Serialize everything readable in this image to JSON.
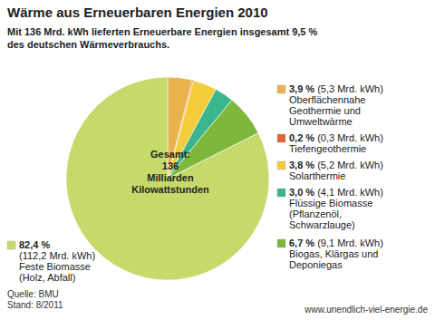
{
  "chart_data": {
    "type": "pie",
    "title": "Wärme aus Erneuerbaren Energien 2010",
    "subtitle": [
      "Mit 136 Mrd. kWh lieferten Erneuerbare Energien insgesamt 9,5 %",
      "des deutschen Wärmeverbrauchs."
    ],
    "center_label": [
      "Gesamt:",
      "136",
      "Milliarden",
      "Kilowattstunden"
    ],
    "categories": [
      "Oberflächennahe\nGeothermie und\nUmweltwärme",
      "Tiefengeothermie",
      "Solarthermie",
      "Flüssige Biomasse\n(Pflanzenöl,\nSchwarzlauge)",
      "Biogas, Klärgas und\nDeponiegas",
      "Feste Biomasse\n(Holz, Abfall)"
    ],
    "values": [
      3.9,
      0.2,
      3.8,
      3.0,
      6.7,
      82.4
    ],
    "value_labels": [
      "3,9 %",
      "0,2 %",
      "3,8 %",
      "3,0 %",
      "6,7 %",
      "82,4 %"
    ],
    "amounts": [
      5.3,
      0.3,
      5.2,
      4.1,
      9.1,
      112.2
    ],
    "amount_labels": [
      "(5,3 Mrd. kWh)",
      "(0,3 Mrd. kWh)",
      "(5,2 Mrd. kWh)",
      "(4,1 Mrd. kWh)",
      "(9,1 Mrd. kWh)",
      "(112,2 Mrd. kWh)"
    ],
    "colors": [
      "#e9b24c",
      "#e0662c",
      "#f4cd3a",
      "#3bb58c",
      "#7db83c",
      "#c6da6b"
    ],
    "data_labels": true,
    "source": "Quelle: BMU",
    "date": "Stand: 8/2011",
    "url": "www.unendlich-viel-energie.de"
  }
}
